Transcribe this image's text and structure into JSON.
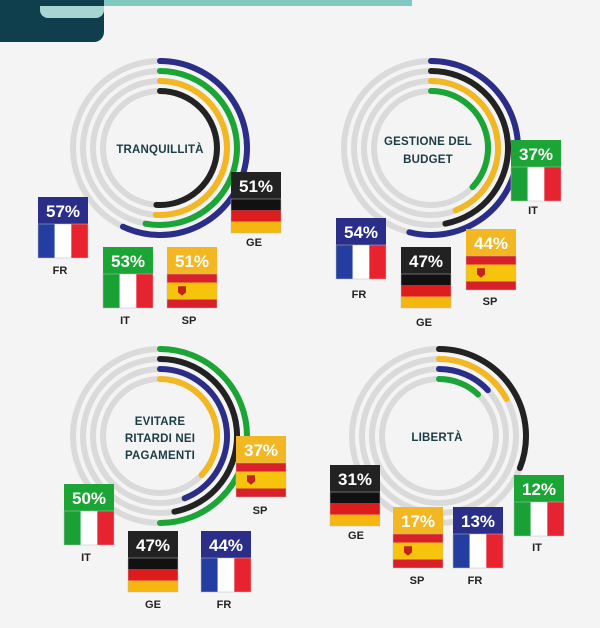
{
  "colors": {
    "FR": "#2b2e88",
    "IT": "#1ba534",
    "SP": "#f4b724",
    "GE": "#222222",
    "track": "#dadada",
    "title_text": "#1c3c46"
  },
  "chart_data": [
    {
      "type": "radial-bar",
      "title": "TRANQUILLITÀ",
      "max": 100,
      "series": [
        {
          "name": "FR",
          "value": 57,
          "label": "57%"
        },
        {
          "name": "IT",
          "value": 53,
          "label": "53%"
        },
        {
          "name": "SP",
          "value": 51,
          "label": "51%"
        },
        {
          "name": "GE",
          "value": 51,
          "label": "51%"
        }
      ]
    },
    {
      "type": "radial-bar",
      "title": "GESTIONE DEL BUDGET",
      "max": 100,
      "series": [
        {
          "name": "FR",
          "value": 54,
          "label": "54%"
        },
        {
          "name": "GE",
          "value": 47,
          "label": "47%"
        },
        {
          "name": "SP",
          "value": 44,
          "label": "44%"
        },
        {
          "name": "IT",
          "value": 37,
          "label": "37%"
        }
      ]
    },
    {
      "type": "radial-bar",
      "title": "EVITARE RITARDI NEI PAGAMENTI",
      "max": 100,
      "series": [
        {
          "name": "IT",
          "value": 50,
          "label": "50%"
        },
        {
          "name": "GE",
          "value": 47,
          "label": "47%"
        },
        {
          "name": "FR",
          "value": 44,
          "label": "44%"
        },
        {
          "name": "SP",
          "value": 37,
          "label": "37%"
        }
      ]
    },
    {
      "type": "radial-bar",
      "title": "LIBERTÀ",
      "max": 100,
      "series": [
        {
          "name": "GE",
          "value": 31,
          "label": "31%"
        },
        {
          "name": "SP",
          "value": 17,
          "label": "17%"
        },
        {
          "name": "FR",
          "value": 13,
          "label": "13%"
        },
        {
          "name": "IT",
          "value": 12,
          "label": "12%"
        }
      ]
    }
  ]
}
